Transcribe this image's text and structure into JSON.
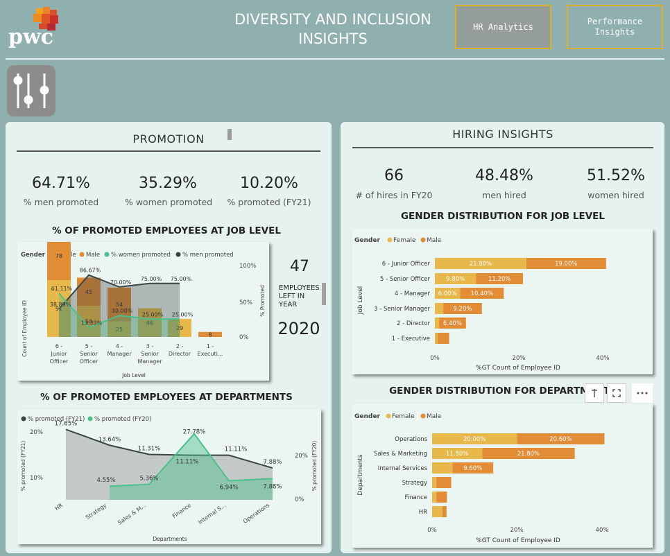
{
  "header": {
    "brand": "pwc",
    "title": "DIVERSITY AND INCLUSION INSIGHTS",
    "buttons": [
      "HR Analytics",
      "Performance Insights"
    ]
  },
  "colors": {
    "female": "#e8b84a",
    "male": "#e28c36",
    "women_promoted": "#4cc08c",
    "men_promoted": "#3a4645",
    "bg": "#8fb0ae",
    "accent": "#d8b02c"
  },
  "promotion": {
    "title": "PROMOTION",
    "kpis": [
      {
        "value": "64.71%",
        "label": "% men promoted"
      },
      {
        "value": "35.29%",
        "label": "% women promoted"
      },
      {
        "value": "10.20%",
        "label": "% promoted (FY21)"
      }
    ],
    "job_title": "% OF PROMOTED EMPLOYEES AT JOB LEVEL",
    "dept_title": "% OF PROMOTED EMPLOYEES AT DEPARTMENTS",
    "left_count": "47",
    "left_label": "EMPLOYEES LEFT IN YEAR",
    "year": "2020"
  },
  "hiring": {
    "title": "HIRING INSIGHTS",
    "kpis": [
      {
        "value": "66",
        "label": "# of hires in FY20"
      },
      {
        "value": "48.48%",
        "label": "men hired"
      },
      {
        "value": "51.52%",
        "label": "women hired"
      }
    ],
    "job_title": "GENDER DISTRIBUTION FOR JOB LEVEL",
    "dept_title": "GENDER DISTRIBUTION FOR DEPARTMENTS"
  },
  "chart_data": [
    {
      "type": "bar",
      "legend_title": "Gender",
      "legend": [
        "Female",
        "Male",
        "% women promoted",
        "% men promoted"
      ],
      "categories": [
        "6 - Junior Officer",
        "5 - Senior Officer",
        "4 - Manager",
        "3 - Senior Manager",
        "2 - Director",
        "1 - Executi..."
      ],
      "series": [
        {
          "name": "Female",
          "values": [
            91,
            50,
            25,
            46,
            29,
            0
          ]
        },
        {
          "name": "Male",
          "values": [
            78,
            45,
            54,
            0,
            0,
            8
          ]
        },
        {
          "name": "% women promoted",
          "values": [
            61.11,
            13.33,
            30.0,
            25.0,
            25.0,
            null
          ]
        },
        {
          "name": "% men promoted",
          "values": [
            38.89,
            86.67,
            70.0,
            75.0,
            75.0,
            null
          ]
        }
      ],
      "labels_women": [
        "61.11%",
        "13.33%",
        "30.00%",
        "25.00%",
        "25.00%",
        ""
      ],
      "labels_men": [
        "38.89%",
        "86.67%",
        "70.00%",
        "75.00%",
        "75.00%",
        ""
      ],
      "xlabel": "Job Level",
      "ylabel": "Count of Employee ID",
      "y2label": "% Promoted",
      "y2ticks": [
        "100%",
        "50%",
        "0%"
      ]
    },
    {
      "type": "area",
      "legend": [
        "% promoted (FY21)",
        "% promoted (FY20)"
      ],
      "categories": [
        "HR",
        "Strategy",
        "Sales & M...",
        "Finance",
        "Internal S...",
        "Operations"
      ],
      "series": [
        {
          "name": "% promoted (FY21)",
          "values": [
            17.65,
            13.64,
            11.31,
            11.11,
            11.11,
            7.88
          ]
        },
        {
          "name": "% promoted (FY20)",
          "values": [
            null,
            4.55,
            5.36,
            27.78,
            6.94,
            7.88
          ]
        }
      ],
      "labels_fy21": [
        "17.65%",
        "13.64%",
        "11.31%",
        "11.11%",
        "11.11%",
        "7.88%"
      ],
      "labels_fy20": [
        "",
        "4.55%",
        "5.36%",
        "27.78%",
        "6.94%",
        "7.88%"
      ],
      "xlabel": "Departments",
      "ylabel": "% promoted (FY21)",
      "y2label": "% promoted (FY20)",
      "yticks": [
        "20%",
        "10%"
      ],
      "y2ticks": [
        "20%",
        "0%"
      ]
    },
    {
      "type": "bar",
      "legend_title": "Gender",
      "legend": [
        "Female",
        "Male"
      ],
      "categories": [
        "6 - Junior Officer",
        "5 - Senior Officer",
        "4 - Manager",
        "3 - Senior Manager",
        "2 - Director",
        "1 - Executive"
      ],
      "series": [
        {
          "name": "Female",
          "values": [
            21.8,
            9.8,
            6.0,
            2.0,
            1.0,
            0.6
          ]
        },
        {
          "name": "Male",
          "values": [
            19.0,
            11.2,
            10.4,
            9.2,
            6.4,
            2.8
          ]
        }
      ],
      "labels_female": [
        "21.80%",
        "9.80%",
        "6.00%",
        "",
        "",
        ""
      ],
      "labels_male": [
        "19.00%",
        "11.20%",
        "10.40%",
        "9.20%",
        "6.40%",
        ""
      ],
      "xlabel": "%GT Count of Employee ID",
      "ylabel": "Job Level",
      "xticks": [
        "0%",
        "20%",
        "40%"
      ]
    },
    {
      "type": "bar",
      "legend_title": "Gender",
      "legend": [
        "Female",
        "Male"
      ],
      "categories": [
        "Operations",
        "Sales & Marketing",
        "Internal Services",
        "Strategy",
        "Finance",
        "HR"
      ],
      "series": [
        {
          "name": "Female",
          "values": [
            20.0,
            11.8,
            4.8,
            1.0,
            1.0,
            2.4
          ]
        },
        {
          "name": "Male",
          "values": [
            20.6,
            21.8,
            9.6,
            3.5,
            2.5,
            1.0
          ]
        }
      ],
      "labels_female": [
        "20.00%",
        "11.80%",
        "",
        "",
        "",
        ""
      ],
      "labels_male": [
        "20.60%",
        "21.80%",
        "9.60%",
        "",
        "",
        ""
      ],
      "xlabel": "%GT Count of Employee ID",
      "ylabel": "Departments",
      "xticks": [
        "0%",
        "20%",
        "40%"
      ]
    }
  ]
}
